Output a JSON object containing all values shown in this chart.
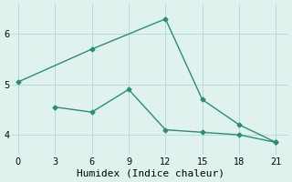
{
  "line1_x": [
    0,
    6,
    12,
    15,
    18,
    21
  ],
  "line1_y": [
    5.05,
    5.7,
    6.3,
    4.7,
    4.2,
    3.85
  ],
  "line2_x": [
    3,
    6,
    9,
    12,
    15,
    18,
    21
  ],
  "line2_y": [
    4.55,
    4.45,
    4.9,
    4.1,
    4.05,
    4.0,
    3.85
  ],
  "color": "#2e8b7a",
  "bg_color": "#dff2ee",
  "grid_color": "#b8ddd6",
  "xlabel": "Humidex (Indice chaleur)",
  "xlim": [
    -0.5,
    22
  ],
  "ylim": [
    3.6,
    6.6
  ],
  "xticks": [
    0,
    3,
    6,
    9,
    12,
    15,
    18,
    21
  ],
  "yticks": [
    4,
    5,
    6
  ],
  "marker": "D",
  "markersize": 2.5,
  "linewidth": 1.0,
  "xlabel_fontsize": 8,
  "tick_fontsize": 7
}
